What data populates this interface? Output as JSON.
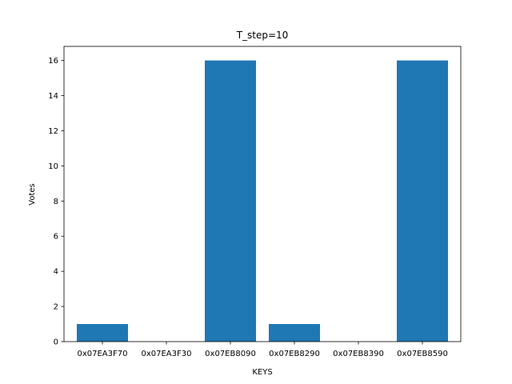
{
  "chart_data": {
    "type": "bar",
    "title": "T_step=10",
    "xlabel": "KEYS",
    "ylabel": "Votes",
    "categories": [
      "0x07EA3F70",
      "0x07EA3F30",
      "0x07EB8090",
      "0x07EB8290",
      "0x07EB8390",
      "0x07EB8590"
    ],
    "values": [
      1,
      0,
      16,
      1,
      0,
      16
    ],
    "ylim": [
      0,
      16.8
    ],
    "yticks": [
      0,
      2,
      4,
      6,
      8,
      10,
      12,
      14,
      16
    ],
    "bar_color": "#1f77b4",
    "grid": false,
    "legend": "none"
  }
}
